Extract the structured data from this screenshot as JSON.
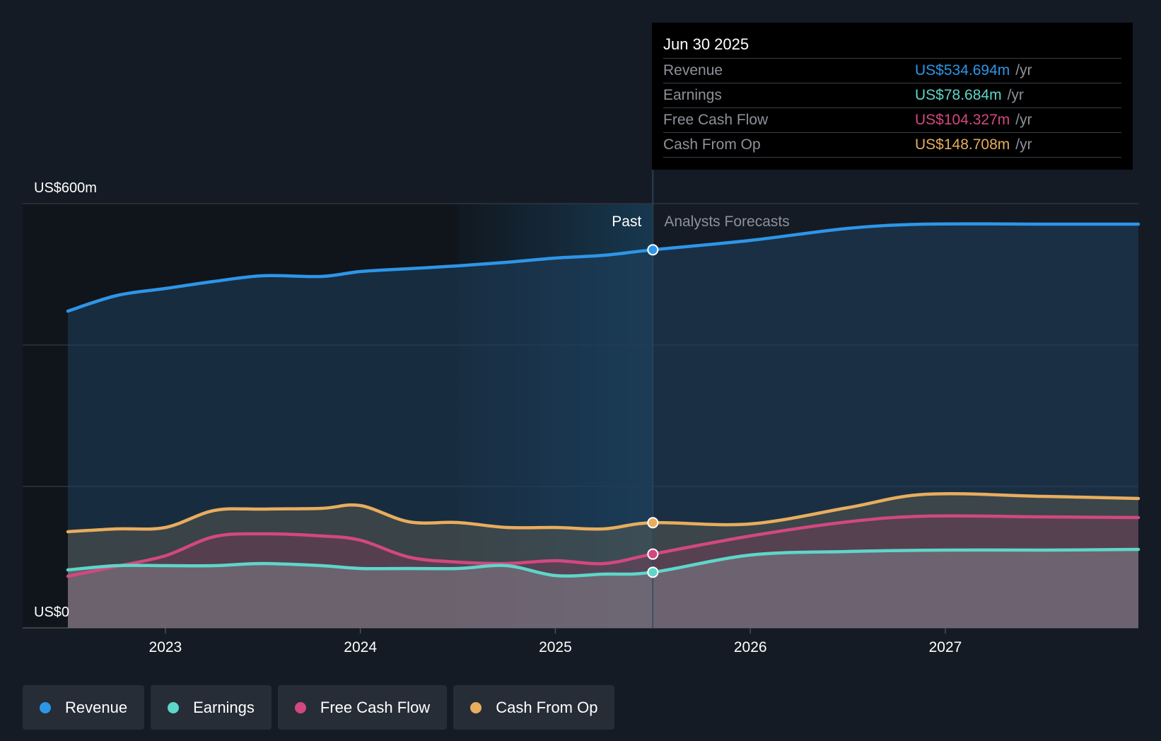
{
  "chart_data": {
    "type": "line",
    "title": "",
    "y_axis": {
      "min": 0,
      "max": 600,
      "top_label": "US$600m",
      "bottom_label": "US$0",
      "gridlines": [
        0,
        200,
        400,
        600
      ]
    },
    "x_ticks": [
      "2023",
      "2024",
      "2025",
      "2026",
      "2027"
    ],
    "x_range": [
      2022.5,
      2027.99
    ],
    "divider": {
      "x": 2025.5,
      "past_label": "Past",
      "forecast_label": "Analysts Forecasts"
    },
    "series": [
      {
        "name": "Revenue",
        "color": "#2d96e8",
        "points": [
          [
            2022.5,
            448
          ],
          [
            2022.75,
            470
          ],
          [
            2023.0,
            480
          ],
          [
            2023.25,
            490
          ],
          [
            2023.5,
            498
          ],
          [
            2023.8,
            497
          ],
          [
            2024.0,
            504
          ],
          [
            2024.25,
            508
          ],
          [
            2024.5,
            512
          ],
          [
            2024.75,
            517
          ],
          [
            2025.0,
            523
          ],
          [
            2025.25,
            527
          ],
          [
            2025.5,
            534.694
          ],
          [
            2026.0,
            548
          ],
          [
            2026.5,
            565
          ],
          [
            2026.9,
            571
          ],
          [
            2027.5,
            571
          ],
          [
            2027.99,
            571
          ]
        ]
      },
      {
        "name": "Earnings",
        "color": "#5ed6c9",
        "points": [
          [
            2022.5,
            82
          ],
          [
            2022.75,
            88
          ],
          [
            2023.0,
            88
          ],
          [
            2023.25,
            88
          ],
          [
            2023.5,
            91
          ],
          [
            2023.8,
            88
          ],
          [
            2024.0,
            84
          ],
          [
            2024.25,
            84
          ],
          [
            2024.5,
            84
          ],
          [
            2024.75,
            88
          ],
          [
            2025.0,
            74
          ],
          [
            2025.25,
            76
          ],
          [
            2025.5,
            78.684
          ],
          [
            2026.0,
            103
          ],
          [
            2026.5,
            108
          ],
          [
            2027.0,
            110
          ],
          [
            2027.5,
            110
          ],
          [
            2027.99,
            111
          ]
        ]
      },
      {
        "name": "Free Cash Flow",
        "color": "#d2487f",
        "points": [
          [
            2022.5,
            73
          ],
          [
            2022.75,
            87
          ],
          [
            2023.0,
            102
          ],
          [
            2023.25,
            129
          ],
          [
            2023.5,
            133
          ],
          [
            2023.8,
            130
          ],
          [
            2024.0,
            124
          ],
          [
            2024.25,
            100
          ],
          [
            2024.5,
            93
          ],
          [
            2024.75,
            91
          ],
          [
            2025.0,
            95
          ],
          [
            2025.25,
            91
          ],
          [
            2025.5,
            104.327
          ],
          [
            2026.0,
            130
          ],
          [
            2026.5,
            150
          ],
          [
            2026.9,
            158
          ],
          [
            2027.5,
            157
          ],
          [
            2027.99,
            156
          ]
        ]
      },
      {
        "name": "Cash From Op",
        "color": "#e8ad5d",
        "points": [
          [
            2022.5,
            136
          ],
          [
            2022.75,
            140
          ],
          [
            2023.0,
            142
          ],
          [
            2023.25,
            166
          ],
          [
            2023.5,
            168
          ],
          [
            2023.8,
            169
          ],
          [
            2024.0,
            173
          ],
          [
            2024.25,
            150
          ],
          [
            2024.5,
            149
          ],
          [
            2024.75,
            142
          ],
          [
            2025.0,
            142
          ],
          [
            2025.25,
            140
          ],
          [
            2025.5,
            148.708
          ],
          [
            2026.0,
            147
          ],
          [
            2026.5,
            170
          ],
          [
            2026.9,
            189
          ],
          [
            2027.5,
            186
          ],
          [
            2027.99,
            183
          ]
        ]
      }
    ],
    "tooltip": {
      "date": "Jun 30 2025",
      "rows": [
        {
          "label": "Revenue",
          "value": "US$534.694m",
          "unit": "/yr",
          "color": "#2d96e8"
        },
        {
          "label": "Earnings",
          "value": "US$78.684m",
          "unit": "/yr",
          "color": "#5ed6c9"
        },
        {
          "label": "Free Cash Flow",
          "value": "US$104.327m",
          "unit": "/yr",
          "color": "#d2487f"
        },
        {
          "label": "Cash From Op",
          "value": "US$148.708m",
          "unit": "/yr",
          "color": "#e8ad5d"
        }
      ]
    }
  },
  "legend": [
    {
      "label": "Revenue",
      "color": "#2d96e8"
    },
    {
      "label": "Earnings",
      "color": "#5ed6c9"
    },
    {
      "label": "Free Cash Flow",
      "color": "#d2487f"
    },
    {
      "label": "Cash From Op",
      "color": "#e8ad5d"
    }
  ]
}
